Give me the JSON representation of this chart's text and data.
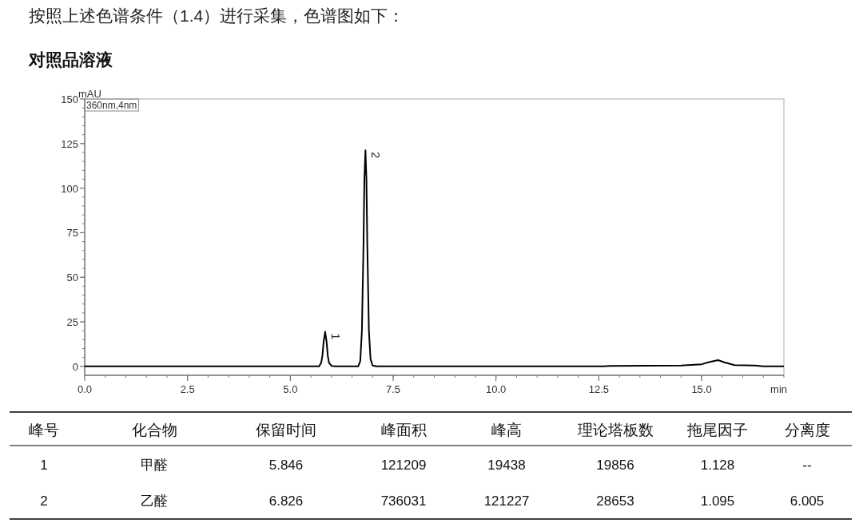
{
  "chart_data": {
    "type": "line",
    "title": "对照品溶液",
    "xlabel": "min",
    "ylabel": "mAU",
    "xlim": [
      0,
      17
    ],
    "ylim": [
      -5,
      150
    ],
    "xticks": [
      {
        "value": 0,
        "label": "0.0"
      },
      {
        "value": 2.5,
        "label": "2.5"
      },
      {
        "value": 5,
        "label": "5.0"
      },
      {
        "value": 7.5,
        "label": "7.5"
      },
      {
        "value": 10,
        "label": "10.0"
      },
      {
        "value": 12.5,
        "label": "12.5"
      },
      {
        "value": 15,
        "label": "15.0"
      }
    ],
    "yticks": [
      0,
      25,
      50,
      75,
      100,
      125,
      150
    ],
    "grid": false,
    "series": [
      {
        "color": "#000000",
        "x": [
          0,
          5.7,
          5.75,
          5.78,
          5.81,
          5.846,
          5.88,
          5.91,
          5.94,
          6.0,
          6.1,
          6.65,
          6.7,
          6.74,
          6.78,
          6.8,
          6.826,
          6.85,
          6.87,
          6.91,
          6.95,
          7.0,
          7.1,
          12.6,
          12.8,
          14.5,
          15.0,
          15.2,
          15.4,
          15.55,
          15.8,
          16.3,
          16.5,
          17
        ],
        "values": [
          0,
          0,
          2,
          6,
          14,
          19.4,
          14,
          6,
          2,
          0.3,
          0,
          0,
          3,
          20,
          70,
          105,
          121.2,
          105,
          70,
          20,
          4,
          0.5,
          0,
          0,
          0.3,
          0.5,
          1.2,
          2.5,
          3.5,
          2.3,
          0.7,
          0.5,
          0,
          0
        ]
      }
    ],
    "annotations": [
      "按照上述色谱条件（1.4）进行采集，色谱图如下：",
      "360nm,4nm",
      {
        "text": "1",
        "x": 5.846,
        "y": 19.4
      },
      {
        "text": "2",
        "x": 6.826,
        "y": 121.2
      },
      "峰号",
      "化合物",
      "保留时间",
      "峰面积",
      "峰高",
      "理论塔板数",
      "拖尾因子",
      "分离度",
      "1",
      "甲醛",
      "5.846",
      "121209",
      "19438",
      "19856",
      "1.128",
      "--",
      "2",
      "乙醛",
      "6.826",
      "736031",
      "121227",
      "28653",
      "1.095",
      "6.005"
    ]
  }
}
